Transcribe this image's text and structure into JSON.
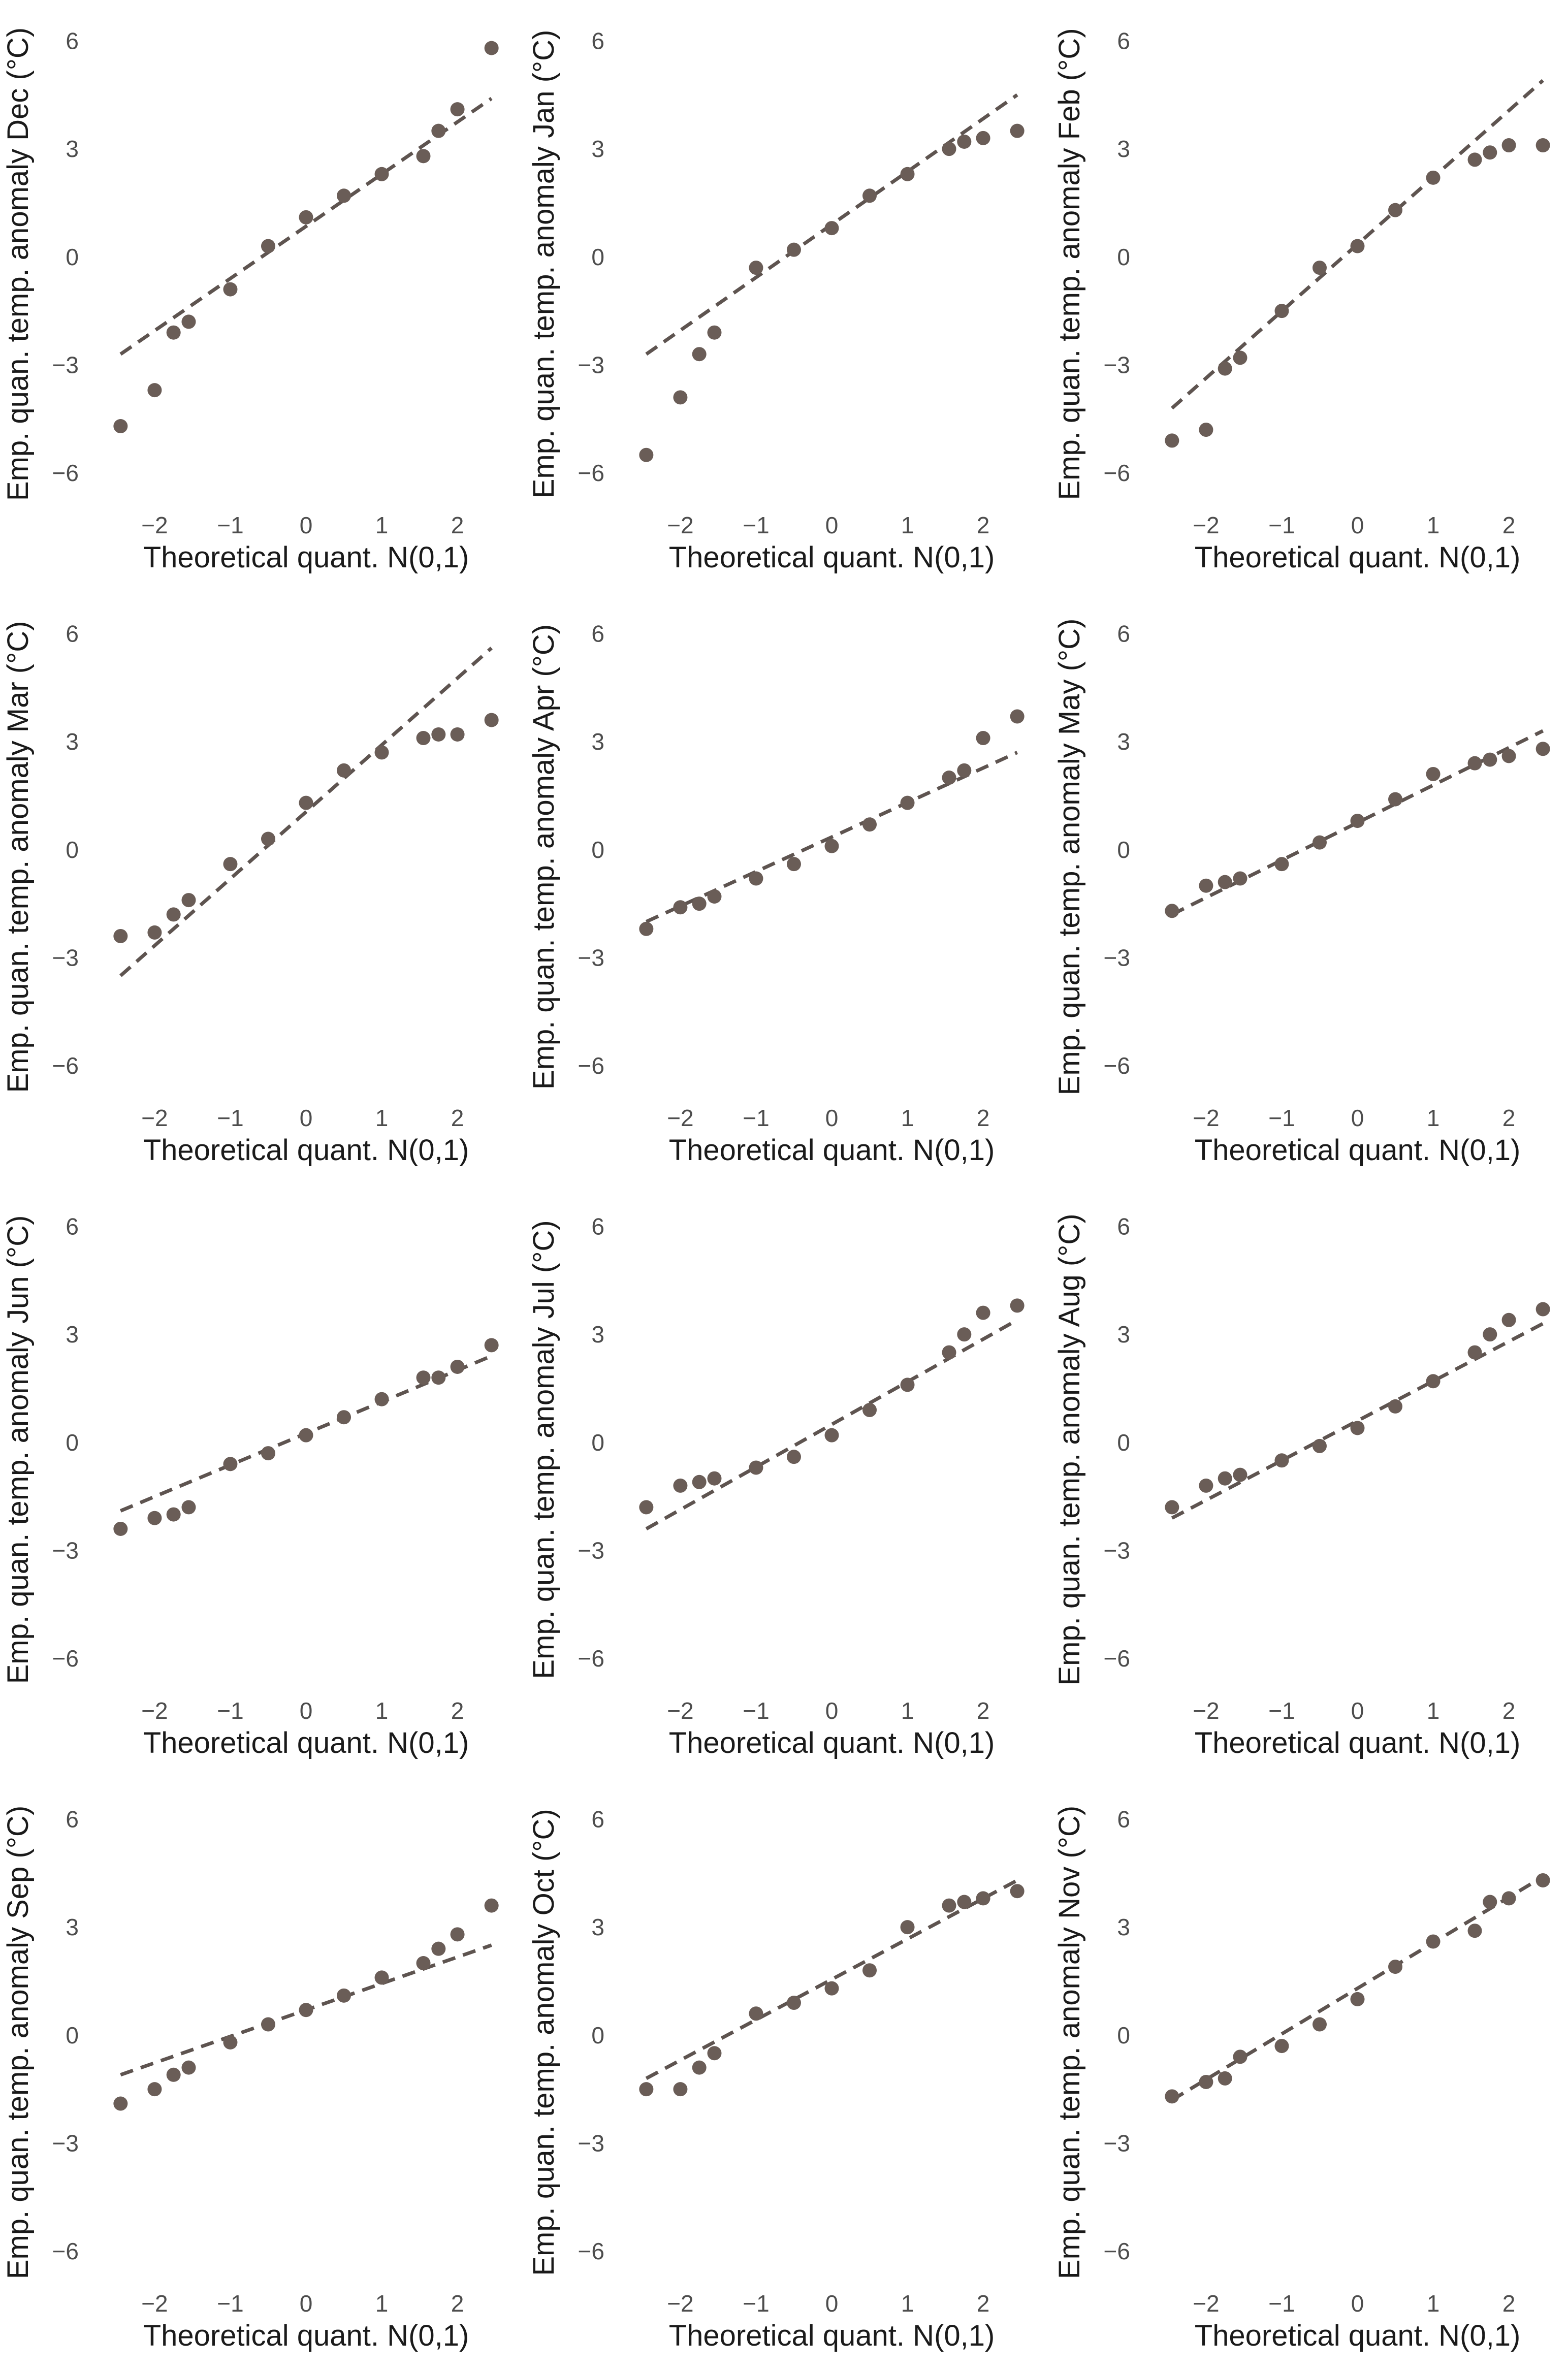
{
  "figure": {
    "point_color": "#6a5d57",
    "line_color": "#5e5450",
    "text_color": "#1a1a1a",
    "tick_color": "#4d4d4d"
  },
  "chart_data": [
    {
      "type": "scatter",
      "month": "Dec",
      "xlabel": "Theoretical quant. N(0,1)",
      "ylabel": "Emp. quan. temp. anomaly Dec (°C)",
      "xlim": [
        -2.6,
        2.6
      ],
      "ylim": [
        -6.9,
        6.5
      ],
      "xticks": [
        -2,
        -1,
        0,
        1,
        2
      ],
      "xtick_labels": [
        "−2",
        "−1",
        "0",
        "1",
        "2"
      ],
      "yticks": [
        -6,
        -3,
        0,
        3,
        6
      ],
      "ytick_labels": [
        "−6",
        "−3",
        "0",
        "3",
        "6"
      ],
      "ref_line": {
        "x": [
          -2.45,
          2.45
        ],
        "y": [
          -2.7,
          4.4
        ]
      },
      "points": {
        "x": [
          -2.45,
          -2.0,
          -1.75,
          -1.55,
          -1.0,
          -0.5,
          0.0,
          0.5,
          1.0,
          1.55,
          1.75,
          2.0,
          2.45
        ],
        "y": [
          -4.7,
          -3.7,
          -2.1,
          -1.8,
          -0.9,
          0.3,
          1.1,
          1.7,
          2.3,
          2.8,
          3.5,
          4.1,
          5.8
        ]
      }
    },
    {
      "type": "scatter",
      "month": "Jan",
      "xlabel": "Theoretical quant. N(0,1)",
      "ylabel": "Emp. quan. temp. anomaly Jan (°C)",
      "xlim": [
        -2.6,
        2.6
      ],
      "ylim": [
        -6.9,
        6.5
      ],
      "xticks": [
        -2,
        -1,
        0,
        1,
        2
      ],
      "xtick_labels": [
        "−2",
        "−1",
        "0",
        "1",
        "2"
      ],
      "yticks": [
        -6,
        -3,
        0,
        3,
        6
      ],
      "ytick_labels": [
        "−6",
        "−3",
        "0",
        "3",
        "6"
      ],
      "ref_line": {
        "x": [
          -2.45,
          2.45
        ],
        "y": [
          -2.7,
          4.5
        ]
      },
      "points": {
        "x": [
          -2.45,
          -2.0,
          -1.75,
          -1.55,
          -1.0,
          -0.5,
          0.0,
          0.5,
          1.0,
          1.55,
          1.75,
          2.0,
          2.45
        ],
        "y": [
          -5.5,
          -3.9,
          -2.7,
          -2.1,
          -0.3,
          0.2,
          0.8,
          1.7,
          2.3,
          3.0,
          3.2,
          3.3,
          3.5
        ]
      }
    },
    {
      "type": "scatter",
      "month": "Feb",
      "xlabel": "Theoretical quant. N(0,1)",
      "ylabel": "Emp. quan. temp. anomaly Feb (°C)",
      "xlim": [
        -2.6,
        2.6
      ],
      "ylim": [
        -6.9,
        6.5
      ],
      "xticks": [
        -2,
        -1,
        0,
        1,
        2
      ],
      "xtick_labels": [
        "−2",
        "−1",
        "0",
        "1",
        "2"
      ],
      "yticks": [
        -6,
        -3,
        0,
        3,
        6
      ],
      "ytick_labels": [
        "−6",
        "−3",
        "0",
        "3",
        "6"
      ],
      "ref_line": {
        "x": [
          -2.45,
          2.45
        ],
        "y": [
          -4.2,
          4.9
        ]
      },
      "points": {
        "x": [
          -2.45,
          -2.0,
          -1.75,
          -1.55,
          -1.0,
          -0.5,
          0.0,
          0.5,
          1.0,
          1.55,
          1.75,
          2.0,
          2.45
        ],
        "y": [
          -5.1,
          -4.8,
          -3.1,
          -2.8,
          -1.5,
          -0.3,
          0.3,
          1.3,
          2.2,
          2.7,
          2.9,
          3.1,
          3.1
        ]
      }
    },
    {
      "type": "scatter",
      "month": "Mar",
      "xlabel": "Theoretical quant. N(0,1)",
      "ylabel": "Emp. quan. temp. anomaly Mar (°C)",
      "xlim": [
        -2.6,
        2.6
      ],
      "ylim": [
        -6.9,
        6.5
      ],
      "xticks": [
        -2,
        -1,
        0,
        1,
        2
      ],
      "xtick_labels": [
        "−2",
        "−1",
        "0",
        "1",
        "2"
      ],
      "yticks": [
        -6,
        -3,
        0,
        3,
        6
      ],
      "ytick_labels": [
        "−6",
        "−3",
        "0",
        "3",
        "6"
      ],
      "ref_line": {
        "x": [
          -2.45,
          2.45
        ],
        "y": [
          -3.5,
          5.6
        ]
      },
      "points": {
        "x": [
          -2.45,
          -2.0,
          -1.75,
          -1.55,
          -1.0,
          -0.5,
          0.0,
          0.5,
          1.0,
          1.55,
          1.75,
          2.0,
          2.45
        ],
        "y": [
          -2.4,
          -2.3,
          -1.8,
          -1.4,
          -0.4,
          0.3,
          1.3,
          2.2,
          2.7,
          3.1,
          3.2,
          3.2,
          3.6
        ]
      }
    },
    {
      "type": "scatter",
      "month": "Apr",
      "xlabel": "Theoretical quant. N(0,1)",
      "ylabel": "Emp. quan. temp. anomaly Apr (°C)",
      "xlim": [
        -2.6,
        2.6
      ],
      "ylim": [
        -6.9,
        6.5
      ],
      "xticks": [
        -2,
        -1,
        0,
        1,
        2
      ],
      "xtick_labels": [
        "−2",
        "−1",
        "0",
        "1",
        "2"
      ],
      "yticks": [
        -6,
        -3,
        0,
        3,
        6
      ],
      "ytick_labels": [
        "−6",
        "−3",
        "0",
        "3",
        "6"
      ],
      "ref_line": {
        "x": [
          -2.45,
          2.45
        ],
        "y": [
          -2.0,
          2.7
        ]
      },
      "points": {
        "x": [
          -2.45,
          -2.0,
          -1.75,
          -1.55,
          -1.0,
          -0.5,
          0.0,
          0.5,
          1.0,
          1.55,
          1.75,
          2.0,
          2.45
        ],
        "y": [
          -2.2,
          -1.6,
          -1.5,
          -1.3,
          -0.8,
          -0.4,
          0.1,
          0.7,
          1.3,
          2.0,
          2.2,
          3.1,
          3.7
        ]
      }
    },
    {
      "type": "scatter",
      "month": "May",
      "xlabel": "Theoretical quant. N(0,1)",
      "ylabel": "Emp. quan. temp. anomaly May (°C)",
      "xlim": [
        -2.6,
        2.6
      ],
      "ylim": [
        -6.9,
        6.5
      ],
      "xticks": [
        -2,
        -1,
        0,
        1,
        2
      ],
      "xtick_labels": [
        "−2",
        "−1",
        "0",
        "1",
        "2"
      ],
      "yticks": [
        -6,
        -3,
        0,
        3,
        6
      ],
      "ytick_labels": [
        "−6",
        "−3",
        "0",
        "3",
        "6"
      ],
      "ref_line": {
        "x": [
          -2.45,
          2.45
        ],
        "y": [
          -1.8,
          3.3
        ]
      },
      "points": {
        "x": [
          -2.45,
          -2.0,
          -1.75,
          -1.55,
          -1.0,
          -0.5,
          0.0,
          0.5,
          1.0,
          1.55,
          1.75,
          2.0,
          2.45
        ],
        "y": [
          -1.7,
          -1.0,
          -0.9,
          -0.8,
          -0.4,
          0.2,
          0.8,
          1.4,
          2.1,
          2.4,
          2.5,
          2.6,
          2.8
        ]
      }
    },
    {
      "type": "scatter",
      "month": "Jun",
      "xlabel": "Theoretical quant. N(0,1)",
      "ylabel": "Emp. quan. temp. anomaly Jun (°C)",
      "xlim": [
        -2.6,
        2.6
      ],
      "ylim": [
        -6.9,
        6.5
      ],
      "xticks": [
        -2,
        -1,
        0,
        1,
        2
      ],
      "xtick_labels": [
        "−2",
        "−1",
        "0",
        "1",
        "2"
      ],
      "yticks": [
        -6,
        -3,
        0,
        3,
        6
      ],
      "ytick_labels": [
        "−6",
        "−3",
        "0",
        "3",
        "6"
      ],
      "ref_line": {
        "x": [
          -2.45,
          2.45
        ],
        "y": [
          -1.9,
          2.4
        ]
      },
      "points": {
        "x": [
          -2.45,
          -2.0,
          -1.75,
          -1.55,
          -1.0,
          -0.5,
          0.0,
          0.5,
          1.0,
          1.55,
          1.75,
          2.0,
          2.45
        ],
        "y": [
          -2.4,
          -2.1,
          -2.0,
          -1.8,
          -0.6,
          -0.3,
          0.2,
          0.7,
          1.2,
          1.8,
          1.8,
          2.1,
          2.7
        ]
      }
    },
    {
      "type": "scatter",
      "month": "Jul",
      "xlabel": "Theoretical quant. N(0,1)",
      "ylabel": "Emp. quan. temp. anomaly Jul (°C)",
      "xlim": [
        -2.6,
        2.6
      ],
      "ylim": [
        -6.9,
        6.5
      ],
      "xticks": [
        -2,
        -1,
        0,
        1,
        2
      ],
      "xtick_labels": [
        "−2",
        "−1",
        "0",
        "1",
        "2"
      ],
      "yticks": [
        -6,
        -3,
        0,
        3,
        6
      ],
      "ytick_labels": [
        "−6",
        "−3",
        "0",
        "3",
        "6"
      ],
      "ref_line": {
        "x": [
          -2.45,
          2.45
        ],
        "y": [
          -2.4,
          3.4
        ]
      },
      "points": {
        "x": [
          -2.45,
          -2.0,
          -1.75,
          -1.55,
          -1.0,
          -0.5,
          0.0,
          0.5,
          1.0,
          1.55,
          1.75,
          2.0,
          2.45
        ],
        "y": [
          -1.8,
          -1.2,
          -1.1,
          -1.0,
          -0.7,
          -0.4,
          0.2,
          0.9,
          1.6,
          2.5,
          3.0,
          3.6,
          3.8
        ]
      }
    },
    {
      "type": "scatter",
      "month": "Aug",
      "xlabel": "Theoretical quant. N(0,1)",
      "ylabel": "Emp. quan. temp. anomaly Aug (°C)",
      "xlim": [
        -2.6,
        2.6
      ],
      "ylim": [
        -6.9,
        6.5
      ],
      "xticks": [
        -2,
        -1,
        0,
        1,
        2
      ],
      "xtick_labels": [
        "−2",
        "−1",
        "0",
        "1",
        "2"
      ],
      "yticks": [
        -6,
        -3,
        0,
        3,
        6
      ],
      "ytick_labels": [
        "−6",
        "−3",
        "0",
        "3",
        "6"
      ],
      "ref_line": {
        "x": [
          -2.45,
          2.45
        ],
        "y": [
          -2.1,
          3.3
        ]
      },
      "points": {
        "x": [
          -2.45,
          -2.0,
          -1.75,
          -1.55,
          -1.0,
          -0.5,
          0.0,
          0.5,
          1.0,
          1.55,
          1.75,
          2.0,
          2.45
        ],
        "y": [
          -1.8,
          -1.2,
          -1.0,
          -0.9,
          -0.5,
          -0.1,
          0.4,
          1.0,
          1.7,
          2.5,
          3.0,
          3.4,
          3.7
        ]
      }
    },
    {
      "type": "scatter",
      "month": "Sep",
      "xlabel": "Theoretical quant. N(0,1)",
      "ylabel": "Emp. quan. temp. anomaly Sep (°C)",
      "xlim": [
        -2.6,
        2.6
      ],
      "ylim": [
        -6.9,
        6.5
      ],
      "xticks": [
        -2,
        -1,
        0,
        1,
        2
      ],
      "xtick_labels": [
        "−2",
        "−1",
        "0",
        "1",
        "2"
      ],
      "yticks": [
        -6,
        -3,
        0,
        3,
        6
      ],
      "ytick_labels": [
        "−6",
        "−3",
        "0",
        "3",
        "6"
      ],
      "ref_line": {
        "x": [
          -2.45,
          2.45
        ],
        "y": [
          -1.1,
          2.5
        ]
      },
      "points": {
        "x": [
          -2.45,
          -2.0,
          -1.75,
          -1.55,
          -1.0,
          -0.5,
          0.0,
          0.5,
          1.0,
          1.55,
          1.75,
          2.0,
          2.45
        ],
        "y": [
          -1.9,
          -1.5,
          -1.1,
          -0.9,
          -0.2,
          0.3,
          0.7,
          1.1,
          1.6,
          2.0,
          2.4,
          2.8,
          3.6
        ]
      }
    },
    {
      "type": "scatter",
      "month": "Oct",
      "xlabel": "Theoretical quant. N(0,1)",
      "ylabel": "Emp. quan. temp. anomaly Oct (°C)",
      "xlim": [
        -2.6,
        2.6
      ],
      "ylim": [
        -6.9,
        6.5
      ],
      "xticks": [
        -2,
        -1,
        0,
        1,
        2
      ],
      "xtick_labels": [
        "−2",
        "−1",
        "0",
        "1",
        "2"
      ],
      "yticks": [
        -6,
        -3,
        0,
        3,
        6
      ],
      "ytick_labels": [
        "−6",
        "−3",
        "0",
        "3",
        "6"
      ],
      "ref_line": {
        "x": [
          -2.45,
          2.45
        ],
        "y": [
          -1.2,
          4.3
        ]
      },
      "points": {
        "x": [
          -2.45,
          -2.0,
          -1.75,
          -1.55,
          -1.0,
          -0.5,
          0.0,
          0.5,
          1.0,
          1.55,
          1.75,
          2.0,
          2.45
        ],
        "y": [
          -1.5,
          -1.5,
          -0.9,
          -0.5,
          0.6,
          0.9,
          1.3,
          1.8,
          3.0,
          3.6,
          3.7,
          3.8,
          4.0
        ]
      }
    },
    {
      "type": "scatter",
      "month": "Nov",
      "xlabel": "Theoretical quant. N(0,1)",
      "ylabel": "Emp. quan. temp. anomaly Nov (°C)",
      "xlim": [
        -2.6,
        2.6
      ],
      "ylim": [
        -6.9,
        6.5
      ],
      "xticks": [
        -2,
        -1,
        0,
        1,
        2
      ],
      "xtick_labels": [
        "−2",
        "−1",
        "0",
        "1",
        "2"
      ],
      "yticks": [
        -6,
        -3,
        0,
        3,
        6
      ],
      "ytick_labels": [
        "−6",
        "−3",
        "0",
        "3",
        "6"
      ],
      "ref_line": {
        "x": [
          -2.45,
          2.45
        ],
        "y": [
          -1.8,
          4.4
        ]
      },
      "points": {
        "x": [
          -2.45,
          -2.0,
          -1.75,
          -1.55,
          -1.0,
          -0.5,
          0.0,
          0.5,
          1.0,
          1.55,
          1.75,
          2.0,
          2.45
        ],
        "y": [
          -1.7,
          -1.3,
          -1.2,
          -0.6,
          -0.3,
          0.3,
          1.0,
          1.9,
          2.6,
          2.9,
          3.7,
          3.8,
          4.3
        ]
      }
    }
  ]
}
